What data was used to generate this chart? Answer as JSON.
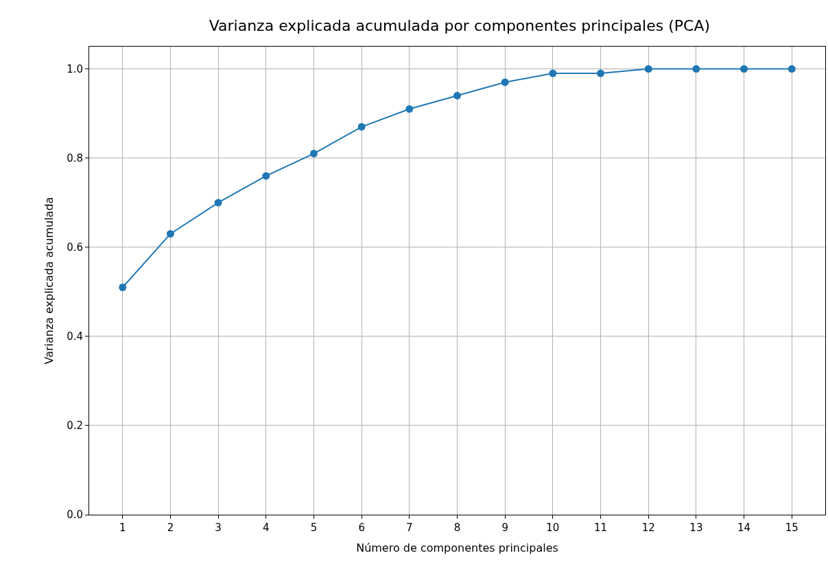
{
  "chart_data": {
    "type": "line",
    "title": "Varianza explicada acumulada por componentes principales (PCA)",
    "xlabel": "Número de componentes principales",
    "ylabel": "Varianza explicada acumulada",
    "x": [
      1,
      2,
      3,
      4,
      5,
      6,
      7,
      8,
      9,
      10,
      11,
      12,
      13,
      14,
      15
    ],
    "series": [
      {
        "color": "#1f77b4",
        "values": [
          0.51,
          0.63,
          0.7,
          0.76,
          0.81,
          0.87,
          0.91,
          0.94,
          0.97,
          0.99,
          0.99,
          1.0,
          1.0,
          1.0,
          1.0
        ]
      }
    ],
    "xlim": [
      0.3,
      15.7
    ],
    "xticks": [
      1,
      2,
      3,
      4,
      5,
      6,
      7,
      8,
      9,
      10,
      11,
      12,
      13,
      14,
      15
    ],
    "ylim": [
      0,
      1.05
    ],
    "yticks": [
      {
        "value": 0,
        "label": "0.0"
      },
      {
        "value": 0.2,
        "label": "0.2"
      },
      {
        "value": 0.4,
        "label": "0.4"
      },
      {
        "value": 0.6,
        "label": "0.6"
      },
      {
        "value": 0.8,
        "label": "0.8"
      },
      {
        "value": 1,
        "label": "1.0"
      }
    ],
    "grid": true,
    "marker": "circle",
    "line_style": "solid"
  }
}
